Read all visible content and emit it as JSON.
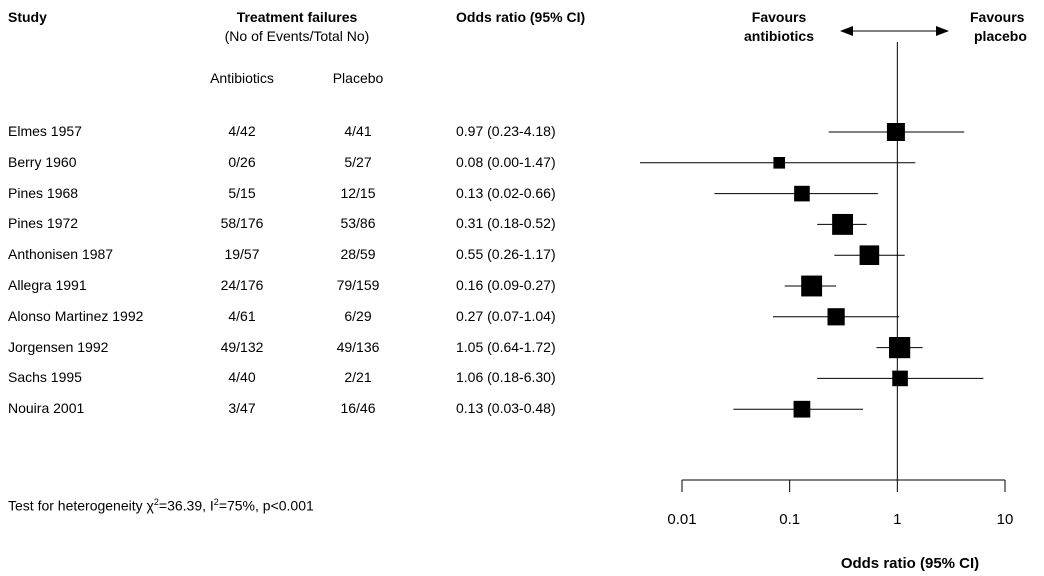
{
  "headers": {
    "study": "Study",
    "treatment_failures": "Treatment failures",
    "events_total": "(No of Events/Total No)",
    "antibiotics": "Antibiotics",
    "placebo": "Placebo",
    "odds_ratio": "Odds ratio (95% CI)",
    "favours_antibiotics_1": "Favours",
    "favours_antibiotics_2": "antibiotics",
    "favours_placebo_1": "Favours",
    "favours_placebo_2": "placebo"
  },
  "heterogeneity": {
    "prefix": "Test for heterogeneity ",
    "chi": "χ",
    "chi_sup": "2",
    "chi_value": "=36.39, I",
    "i_sup": "2",
    "rest": "=75%, p<0.001"
  },
  "studies": [
    {
      "study": "Elmes 1957",
      "antibiotics": "4/42",
      "placebo": "4/41",
      "or_text": "0.97 (0.23-4.18)"
    },
    {
      "study": "Berry 1960",
      "antibiotics": "0/26",
      "placebo": "5/27",
      "or_text": "0.08 (0.00-1.47)"
    },
    {
      "study": "Pines 1968",
      "antibiotics": "5/15",
      "placebo": "12/15",
      "or_text": "0.13 (0.02-0.66)"
    },
    {
      "study": "Pines 1972",
      "antibiotics": "58/176",
      "placebo": "53/86",
      "or_text": "0.31 (0.18-0.52)"
    },
    {
      "study": "Anthonisen 1987",
      "antibiotics": "19/57",
      "placebo": "28/59",
      "or_text": "0.55 (0.26-1.17)"
    },
    {
      "study": "Allegra 1991",
      "antibiotics": "24/176",
      "placebo": "79/159",
      "or_text": "0.16 (0.09-0.27)"
    },
    {
      "study": "Alonso Martinez 1992",
      "antibiotics": "4/61",
      "placebo": "6/29",
      "or_text": "0.27 (0.07-1.04)"
    },
    {
      "study": "Jorgensen 1992",
      "antibiotics": "49/132",
      "placebo": "49/136",
      "or_text": "1.05 (0.64-1.72)"
    },
    {
      "study": "Sachs 1995",
      "antibiotics": "4/40",
      "placebo": "2/21",
      "or_text": "1.06 (0.18-6.30)"
    },
    {
      "study": "Nouira 2001",
      "antibiotics": "3/47",
      "placebo": "16/46",
      "or_text": "0.13 (0.03-0.48)"
    }
  ],
  "chart_data": {
    "type": "scatter",
    "title": "",
    "xlabel": "Odds ratio (95% CI)",
    "ylabel": "",
    "x_scale": "log",
    "xlim": [
      0.01,
      10
    ],
    "x_ticks": [
      "0.01",
      "0.1",
      "1",
      "10"
    ],
    "x_tick_values": [
      0.01,
      0.1,
      1,
      10
    ],
    "reference_line": 1,
    "grid": false,
    "series": [
      {
        "values": [
          {
            "study": "Elmes 1957",
            "or": 0.97,
            "lo": 0.23,
            "hi": 4.18,
            "weight": 1.0
          },
          {
            "study": "Berry 1960",
            "or": 0.08,
            "lo": 0.001,
            "hi": 1.47,
            "weight": 0.6
          },
          {
            "study": "Pines 1968",
            "or": 0.13,
            "lo": 0.02,
            "hi": 0.66,
            "weight": 0.85
          },
          {
            "study": "Pines 1972",
            "or": 0.31,
            "lo": 0.18,
            "hi": 0.52,
            "weight": 1.18
          },
          {
            "study": "Anthonisen 1987",
            "or": 0.55,
            "lo": 0.26,
            "hi": 1.17,
            "weight": 1.1
          },
          {
            "study": "Allegra 1991",
            "or": 0.16,
            "lo": 0.09,
            "hi": 0.27,
            "weight": 1.18
          },
          {
            "study": "Alonso Martinez 1992",
            "or": 0.27,
            "lo": 0.07,
            "hi": 1.04,
            "weight": 0.95
          },
          {
            "study": "Jorgensen 1992",
            "or": 1.05,
            "lo": 0.64,
            "hi": 1.72,
            "weight": 1.2
          },
          {
            "study": "Sachs 1995",
            "or": 1.06,
            "lo": 0.18,
            "hi": 6.3,
            "weight": 0.85
          },
          {
            "study": "Nouira 2001",
            "or": 0.13,
            "lo": 0.03,
            "hi": 0.48,
            "weight": 0.92
          }
        ]
      }
    ]
  }
}
